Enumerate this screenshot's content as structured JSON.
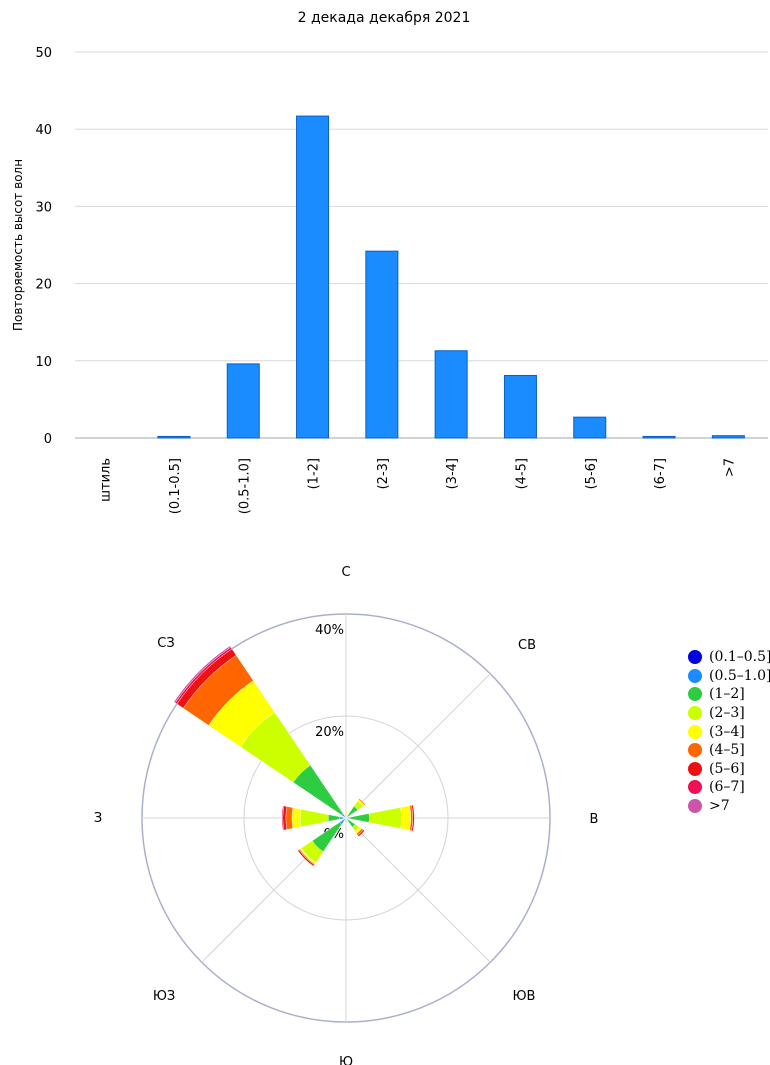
{
  "chart_data": [
    {
      "type": "bar",
      "title": "2 декада декабря 2021",
      "xlabel": "",
      "ylabel": "Повторяемость высот волн",
      "categories": [
        "штиль",
        "(0.1-0.5]",
        "(0.5-1.0]",
        "(1-2]",
        "(2-3]",
        "(3-4]",
        "(4-5]",
        "(5-6]",
        "(6-7]",
        ">7"
      ],
      "values": [
        0,
        0.2,
        9.6,
        41.7,
        24.2,
        11.3,
        8.1,
        2.7,
        0.2,
        0.3
      ],
      "ylim": [
        0,
        50
      ],
      "yticks": [
        0,
        10,
        20,
        30,
        40,
        50
      ],
      "grid": true,
      "color": "#1a8cff"
    },
    {
      "type": "polar_stacked_bar",
      "directions": [
        "С",
        "СВ",
        "В",
        "ЮВ",
        "Ю",
        "ЮЗ",
        "З",
        "СЗ"
      ],
      "radial_ticks": [
        "0%",
        "20%",
        "40%"
      ],
      "rmax": 40,
      "grid": true,
      "legend": "right",
      "series": [
        {
          "name": "(0.1-0.5]",
          "color": "#0000dd",
          "values": [
            0,
            0,
            0,
            0,
            0,
            0,
            0,
            0
          ]
        },
        {
          "name": "(0.5-1.0]",
          "color": "#1a8cff",
          "values": [
            0.2,
            0.3,
            0.8,
            0.5,
            0.5,
            1.5,
            1.3,
            1.0
          ]
        },
        {
          "name": "(1-2]",
          "color": "#2ecc40",
          "values": [
            0.5,
            2.5,
            3.8,
            1.7,
            0.3,
            6.5,
            2.2,
            11.5
          ]
        },
        {
          "name": "(2-3]",
          "color": "#ccff00",
          "values": [
            0.3,
            1.2,
            6.3,
            1.0,
            0,
            2.6,
            5.5,
            12.5
          ]
        },
        {
          "name": "(3-4]",
          "color": "#ffff00",
          "values": [
            0.3,
            0.4,
            1.8,
            0.5,
            0,
            0.3,
            1.6,
            7.5
          ]
        },
        {
          "name": "(4-5]",
          "color": "#ff6600",
          "values": [
            0,
            0.2,
            0.4,
            0.4,
            0,
            0.2,
            1.2,
            6.0
          ]
        },
        {
          "name": "(5-6]",
          "color": "#ee1111",
          "values": [
            0,
            0,
            0.3,
            0.3,
            0,
            0.3,
            0.6,
            1.5
          ]
        },
        {
          "name": "(6-7]",
          "color": "#ee1155",
          "values": [
            0,
            0,
            0,
            0,
            0,
            0,
            0.2,
            0.4
          ]
        },
        {
          "name": ">7",
          "color": "#cc55aa",
          "values": [
            0,
            0,
            0,
            0,
            0,
            0,
            0,
            0.3
          ]
        }
      ]
    }
  ],
  "legend_labels": [
    "(0.1–0.5]",
    "(0.5–1.0]",
    "(1–2]",
    "(2–3]",
    "(3–4]",
    "(4–5]",
    "(5–6]",
    "(6–7]",
    ">7"
  ]
}
